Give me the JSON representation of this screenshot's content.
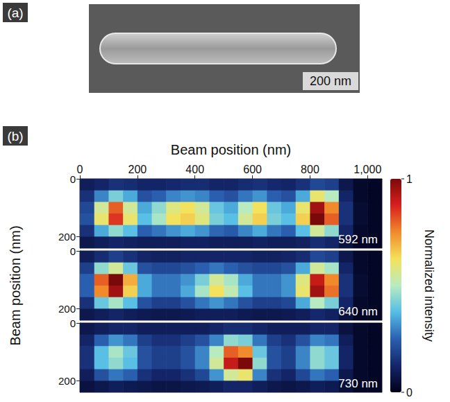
{
  "figure_labels": [
    "(a)",
    "(b)"
  ],
  "sem_image": {
    "scale_bar": "200 nm"
  },
  "colorbar": {
    "label": "Normalized intensity",
    "range": [
      0,
      1
    ],
    "ticks": [
      0,
      1
    ]
  },
  "chart_data": [
    {
      "type": "heatmap",
      "annotation": "592 nm",
      "x_label": "Beam position (nm)",
      "xlim": [
        0,
        1050
      ],
      "xticks": [
        0,
        200,
        400,
        600,
        800,
        1000
      ],
      "ylim": [
        0,
        240
      ],
      "yticks": [
        0,
        200
      ],
      "x": [
        25,
        75,
        125,
        175,
        225,
        275,
        325,
        375,
        425,
        475,
        525,
        575,
        625,
        675,
        725,
        775,
        825,
        875,
        925,
        975,
        1025
      ],
      "y": [
        20,
        60,
        100,
        140,
        180,
        220
      ],
      "cells": [
        [
          0.1,
          0.12,
          0.15,
          0.14,
          0.12,
          0.12,
          0.13,
          0.14,
          0.14,
          0.12,
          0.12,
          0.14,
          0.15,
          0.13,
          0.12,
          0.15,
          0.2,
          0.18,
          0.08,
          0.03,
          0.02
        ],
        [
          0.15,
          0.3,
          0.42,
          0.35,
          0.22,
          0.25,
          0.3,
          0.32,
          0.3,
          0.25,
          0.22,
          0.28,
          0.32,
          0.25,
          0.22,
          0.35,
          0.6,
          0.5,
          0.12,
          0.03,
          0.02
        ],
        [
          0.2,
          0.55,
          0.8,
          0.55,
          0.35,
          0.45,
          0.58,
          0.62,
          0.55,
          0.4,
          0.35,
          0.5,
          0.62,
          0.4,
          0.35,
          0.6,
          0.95,
          0.75,
          0.15,
          0.04,
          0.02
        ],
        [
          0.22,
          0.6,
          0.85,
          0.6,
          0.38,
          0.48,
          0.62,
          0.65,
          0.58,
          0.42,
          0.38,
          0.55,
          0.65,
          0.42,
          0.38,
          0.65,
          1.0,
          0.8,
          0.15,
          0.04,
          0.02
        ],
        [
          0.15,
          0.35,
          0.45,
          0.38,
          0.25,
          0.28,
          0.32,
          0.35,
          0.32,
          0.26,
          0.24,
          0.3,
          0.35,
          0.28,
          0.25,
          0.38,
          0.55,
          0.45,
          0.12,
          0.03,
          0.02
        ],
        [
          0.08,
          0.1,
          0.12,
          0.11,
          0.1,
          0.1,
          0.1,
          0.11,
          0.11,
          0.1,
          0.1,
          0.1,
          0.11,
          0.1,
          0.1,
          0.11,
          0.14,
          0.12,
          0.06,
          0.02,
          0.02
        ]
      ]
    },
    {
      "type": "heatmap",
      "annotation": "640 nm",
      "y_label": "Beam position (nm)",
      "tick_labels": "y",
      "xlim": [
        0,
        1050
      ],
      "ylim": [
        0,
        240
      ],
      "yticks": [
        0,
        200
      ],
      "x": [
        25,
        75,
        125,
        175,
        225,
        275,
        325,
        375,
        425,
        475,
        525,
        575,
        625,
        675,
        725,
        775,
        825,
        875,
        925,
        975,
        1025
      ],
      "y": [
        20,
        60,
        100,
        140,
        180,
        220
      ],
      "cells": [
        [
          0.1,
          0.14,
          0.18,
          0.15,
          0.12,
          0.11,
          0.11,
          0.12,
          0.12,
          0.12,
          0.12,
          0.12,
          0.11,
          0.11,
          0.12,
          0.14,
          0.2,
          0.18,
          0.08,
          0.03,
          0.02
        ],
        [
          0.18,
          0.45,
          0.55,
          0.4,
          0.22,
          0.2,
          0.2,
          0.22,
          0.25,
          0.28,
          0.25,
          0.22,
          0.2,
          0.2,
          0.22,
          0.35,
          0.55,
          0.48,
          0.12,
          0.03,
          0.02
        ],
        [
          0.25,
          0.8,
          1.0,
          0.7,
          0.35,
          0.28,
          0.28,
          0.32,
          0.42,
          0.55,
          0.48,
          0.35,
          0.28,
          0.28,
          0.32,
          0.58,
          0.9,
          0.75,
          0.15,
          0.04,
          0.02
        ],
        [
          0.25,
          0.75,
          0.95,
          0.65,
          0.35,
          0.28,
          0.28,
          0.35,
          0.48,
          0.62,
          0.52,
          0.38,
          0.28,
          0.28,
          0.32,
          0.6,
          0.95,
          0.78,
          0.15,
          0.04,
          0.02
        ],
        [
          0.15,
          0.4,
          0.48,
          0.38,
          0.22,
          0.18,
          0.18,
          0.22,
          0.28,
          0.32,
          0.28,
          0.22,
          0.18,
          0.18,
          0.2,
          0.35,
          0.5,
          0.42,
          0.12,
          0.03,
          0.02
        ],
        [
          0.08,
          0.1,
          0.12,
          0.1,
          0.09,
          0.08,
          0.08,
          0.09,
          0.1,
          0.1,
          0.1,
          0.09,
          0.08,
          0.08,
          0.09,
          0.1,
          0.13,
          0.11,
          0.06,
          0.02,
          0.02
        ]
      ]
    },
    {
      "type": "heatmap",
      "annotation": "730 nm",
      "tick_labels": "y",
      "xlim": [
        0,
        1050
      ],
      "ylim": [
        0,
        240
      ],
      "yticks": [
        0,
        200
      ],
      "x": [
        25,
        75,
        125,
        175,
        225,
        275,
        325,
        375,
        425,
        475,
        525,
        575,
        625,
        675,
        725,
        775,
        825,
        875,
        925,
        975,
        1025
      ],
      "y": [
        20,
        60,
        100,
        140,
        180,
        220
      ],
      "cells": [
        [
          0.08,
          0.1,
          0.12,
          0.12,
          0.1,
          0.1,
          0.1,
          0.1,
          0.1,
          0.12,
          0.14,
          0.14,
          0.12,
          0.1,
          0.1,
          0.1,
          0.12,
          0.12,
          0.06,
          0.03,
          0.02
        ],
        [
          0.12,
          0.25,
          0.32,
          0.28,
          0.18,
          0.15,
          0.15,
          0.18,
          0.22,
          0.3,
          0.45,
          0.42,
          0.28,
          0.18,
          0.15,
          0.22,
          0.3,
          0.28,
          0.1,
          0.03,
          0.02
        ],
        [
          0.15,
          0.38,
          0.48,
          0.4,
          0.22,
          0.18,
          0.18,
          0.22,
          0.3,
          0.5,
          0.8,
          0.75,
          0.4,
          0.22,
          0.18,
          0.3,
          0.45,
          0.4,
          0.12,
          0.03,
          0.02
        ],
        [
          0.15,
          0.38,
          0.45,
          0.38,
          0.22,
          0.18,
          0.18,
          0.22,
          0.3,
          0.55,
          0.9,
          1.0,
          0.45,
          0.22,
          0.18,
          0.3,
          0.45,
          0.4,
          0.12,
          0.03,
          0.02
        ],
        [
          0.1,
          0.22,
          0.28,
          0.25,
          0.15,
          0.12,
          0.12,
          0.15,
          0.2,
          0.32,
          0.55,
          0.6,
          0.3,
          0.15,
          0.12,
          0.2,
          0.28,
          0.25,
          0.08,
          0.03,
          0.02
        ],
        [
          0.06,
          0.08,
          0.1,
          0.09,
          0.08,
          0.07,
          0.07,
          0.08,
          0.09,
          0.1,
          0.12,
          0.12,
          0.1,
          0.08,
          0.07,
          0.08,
          0.1,
          0.09,
          0.05,
          0.02,
          0.02
        ]
      ]
    }
  ]
}
